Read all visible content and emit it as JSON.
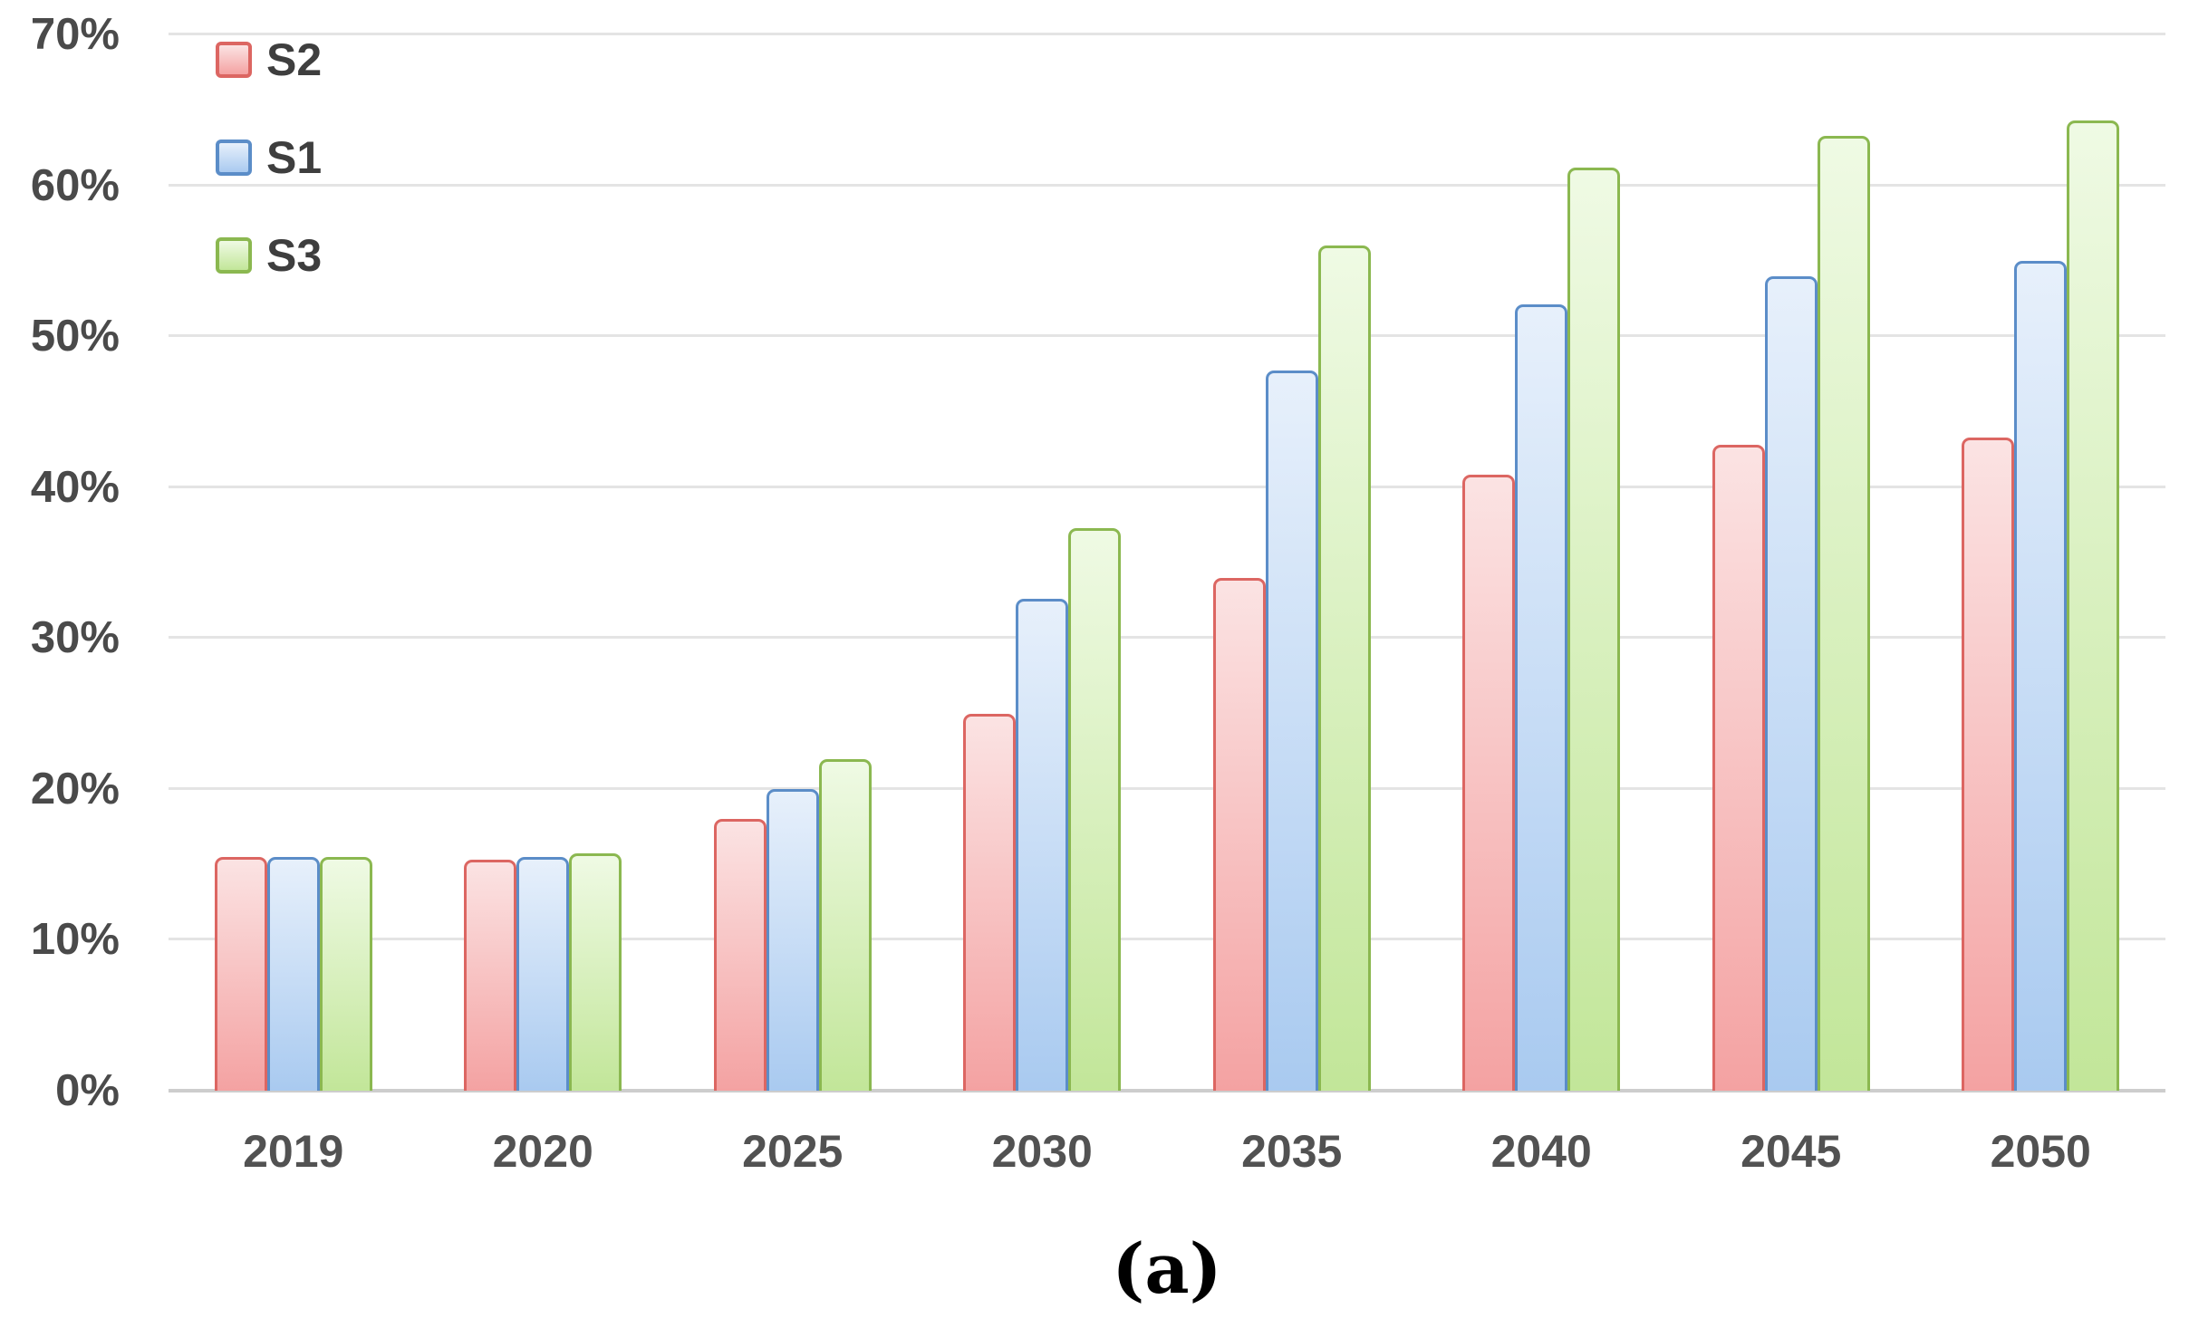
{
  "figure": {
    "caption": "(a)"
  },
  "chart_data": {
    "type": "bar",
    "title": "",
    "xlabel": "",
    "ylabel": "",
    "categories": [
      "2019",
      "2020",
      "2025",
      "2030",
      "2035",
      "2040",
      "2045",
      "2050"
    ],
    "series": [
      {
        "name": "S2",
        "border_color": "#dc6662",
        "fill_top": "#fbe3e3",
        "fill_bottom": "#f4a2a2",
        "values": [
          15.5,
          15.3,
          18.0,
          25.0,
          34.0,
          40.8,
          42.8,
          43.3
        ]
      },
      {
        "name": "S1",
        "border_color": "#5b8dc8",
        "fill_top": "#e7f0fb",
        "fill_bottom": "#a9caf0",
        "values": [
          15.5,
          15.5,
          20.0,
          32.6,
          47.7,
          52.1,
          54.0,
          55.0
        ]
      },
      {
        "name": "S3",
        "border_color": "#8bb850",
        "fill_top": "#effae4",
        "fill_bottom": "#c2e699",
        "values": [
          15.5,
          15.7,
          22.0,
          37.3,
          56.0,
          61.2,
          63.3,
          64.3
        ]
      }
    ],
    "y_axis": {
      "min": 0,
      "max": 70,
      "step": 10,
      "tick_labels": [
        "0%",
        "10%",
        "20%",
        "30%",
        "40%",
        "50%",
        "60%",
        "70%"
      ],
      "grid": true
    },
    "x_axis": {
      "tick_labels": [
        "2019",
        "2020",
        "2025",
        "2030",
        "2035",
        "2040",
        "2045",
        "2050"
      ]
    },
    "legend": {
      "position": "top-left",
      "entries": [
        "S2",
        "S1",
        "S3"
      ]
    },
    "caption": "(a)",
    "colors": {
      "gridline": "#e4e4e4",
      "axis_line": "#cdcdcd",
      "y_tick_text": "#4a4a4a",
      "x_tick_text": "#525252",
      "legend_text": "#3e3e3e",
      "background": "#ffffff"
    }
  }
}
